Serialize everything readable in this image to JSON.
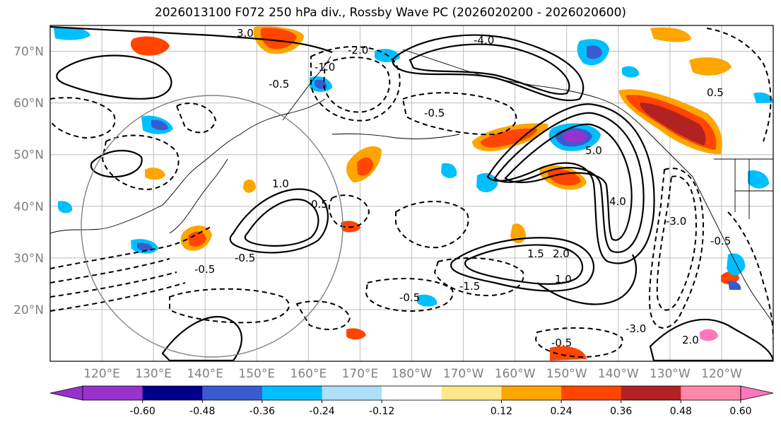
{
  "title": "2026013100 F072 250 hPa div., Rossby Wave PC (2026020200 - 2026020600)",
  "map": {
    "lat_labels": [
      "70°N",
      "60°N",
      "50°N",
      "40°N",
      "30°N",
      "20°N"
    ],
    "lat_values": [
      70,
      60,
      50,
      40,
      30,
      20
    ],
    "lon_labels": [
      "120°E",
      "130°E",
      "140°E",
      "150°E",
      "160°E",
      "170°E",
      "180°W",
      "170°W",
      "160°W",
      "150°W",
      "140°W",
      "130°W",
      "120°W"
    ],
    "lon_extent": [
      110,
      250
    ],
    "lat_extent": [
      10,
      75
    ],
    "contour_labels": [
      "-0.5",
      "-0.5",
      "-0.5",
      "-0.5",
      "-1.0",
      "-1.5",
      "-2.0",
      "-3.0",
      "-4.0",
      "0.5",
      "1.0",
      "1.5",
      "2.0",
      "3.0",
      "4.0",
      "5.0",
      "0.5",
      "-0.5",
      "1.0",
      "-0.5",
      "-0.5",
      "2.0",
      "-3.0"
    ]
  },
  "colorbar": {
    "ticks": [
      "-0.60",
      "-0.48",
      "-0.36",
      "-0.24",
      "-0.12",
      "0.12",
      "0.24",
      "0.36",
      "0.48",
      "0.60"
    ],
    "colors": [
      "#9932cc",
      "#00008b",
      "#3a5bd0",
      "#00bfff",
      "#afe0fa",
      "#ffffff",
      "#ffe88a",
      "#ffa500",
      "#ff4500",
      "#b22222",
      "#ff88aa",
      "#ff77bb"
    ],
    "under_color": "#9932cc",
    "over_color": "#ff77bb"
  }
}
